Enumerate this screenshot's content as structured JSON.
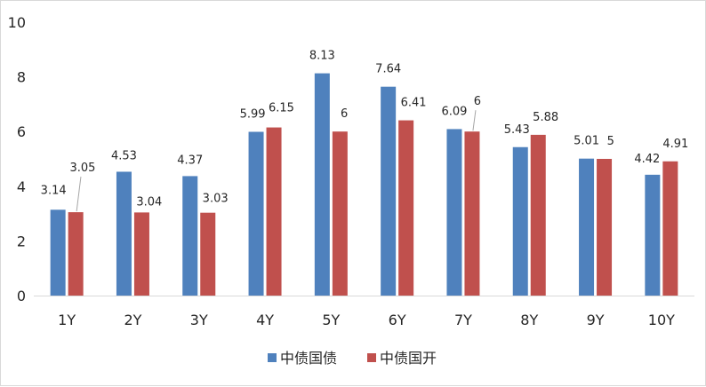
{
  "chart_data": {
    "type": "bar",
    "categories": [
      "1Y",
      "2Y",
      "3Y",
      "4Y",
      "5Y",
      "6Y",
      "7Y",
      "8Y",
      "9Y",
      "10Y"
    ],
    "series": [
      {
        "name": "中债国债",
        "color": "#4f81bd",
        "values": [
          3.14,
          4.53,
          4.37,
          5.99,
          8.13,
          7.64,
          6.09,
          5.43,
          5.01,
          4.42
        ]
      },
      {
        "name": "中债国开",
        "color": "#c0504d",
        "values": [
          3.05,
          3.04,
          3.03,
          6.15,
          6,
          6.41,
          6,
          5.88,
          5,
          4.91
        ]
      }
    ],
    "title": "",
    "xlabel": "",
    "ylabel": "",
    "ylim": [
      0,
      10
    ],
    "yticks": [
      "0",
      "2",
      "4",
      "6",
      "8",
      "10"
    ],
    "grid": false,
    "legend_position": "bottom"
  }
}
